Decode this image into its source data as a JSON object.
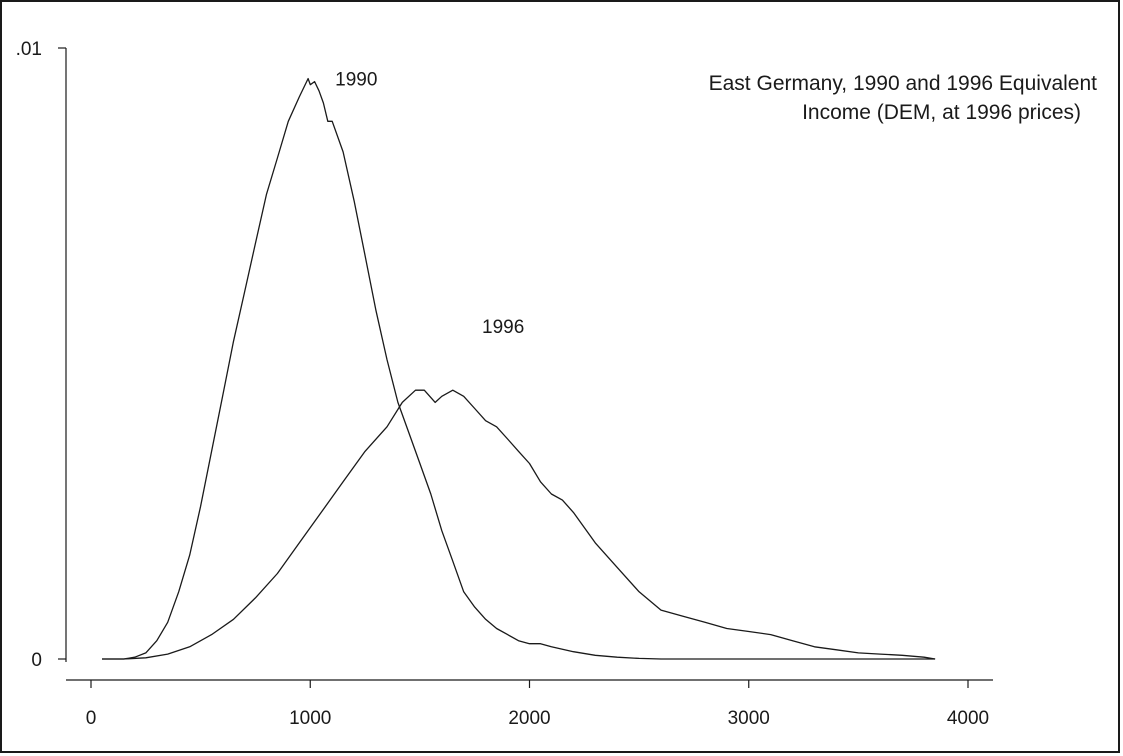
{
  "chart_data": {
    "type": "line",
    "title_lines": [
      "East Germany, 1990 and 1996 Equivalent",
      "Income (DEM, at 1996 prices)"
    ],
    "xlabel": "",
    "ylabel": "",
    "xlim": [
      -50,
      4150
    ],
    "ylim": [
      0,
      0.0103
    ],
    "x_ticks": [
      0,
      1000,
      2000,
      3000,
      4000
    ],
    "x_tick_labels": [
      "0",
      "1000",
      "2000",
      "3000",
      "4000"
    ],
    "y_ticks": [
      0,
      0.01
    ],
    "y_tick_labels": [
      "0",
      ".01"
    ],
    "grid": false,
    "legend": "none",
    "series": [
      {
        "name": "1990",
        "label_at": [
          1210,
          0.0095
        ],
        "points": [
          [
            50,
            0
          ],
          [
            150,
            0
          ],
          [
            200,
            3e-05
          ],
          [
            250,
            0.0001
          ],
          [
            300,
            0.0003
          ],
          [
            350,
            0.0006
          ],
          [
            400,
            0.0011
          ],
          [
            450,
            0.0017
          ],
          [
            500,
            0.0025
          ],
          [
            550,
            0.0034
          ],
          [
            600,
            0.0043
          ],
          [
            650,
            0.0052
          ],
          [
            700,
            0.006
          ],
          [
            750,
            0.0068
          ],
          [
            800,
            0.0076
          ],
          [
            850,
            0.0082
          ],
          [
            900,
            0.0088
          ],
          [
            950,
            0.0092
          ],
          [
            990,
            0.0095
          ],
          [
            1000,
            0.0094
          ],
          [
            1020,
            0.00945
          ],
          [
            1040,
            0.0093
          ],
          [
            1060,
            0.0091
          ],
          [
            1080,
            0.0088
          ],
          [
            1100,
            0.0088
          ],
          [
            1150,
            0.0083
          ],
          [
            1200,
            0.0075
          ],
          [
            1250,
            0.0066
          ],
          [
            1300,
            0.0057
          ],
          [
            1350,
            0.0049
          ],
          [
            1400,
            0.0042
          ],
          [
            1450,
            0.0037
          ],
          [
            1500,
            0.0032
          ],
          [
            1550,
            0.0027
          ],
          [
            1600,
            0.0021
          ],
          [
            1650,
            0.0016
          ],
          [
            1700,
            0.0011
          ],
          [
            1750,
            0.00085
          ],
          [
            1800,
            0.00065
          ],
          [
            1850,
            0.0005
          ],
          [
            1900,
            0.0004
          ],
          [
            1950,
            0.0003
          ],
          [
            2000,
            0.00025
          ],
          [
            2050,
            0.00025
          ],
          [
            2100,
            0.0002
          ],
          [
            2200,
            0.00012
          ],
          [
            2300,
            6e-05
          ],
          [
            2400,
            3e-05
          ],
          [
            2500,
            1e-05
          ],
          [
            2600,
            0
          ],
          [
            3000,
            0
          ],
          [
            3500,
            0
          ],
          [
            3850,
            0
          ]
        ]
      },
      {
        "name": "1996",
        "label_at": [
          1880,
          0.00545
        ],
        "points": [
          [
            50,
            0
          ],
          [
            150,
            0
          ],
          [
            250,
            2e-05
          ],
          [
            350,
            8e-05
          ],
          [
            450,
            0.0002
          ],
          [
            550,
            0.0004
          ],
          [
            650,
            0.00065
          ],
          [
            750,
            0.001
          ],
          [
            850,
            0.0014
          ],
          [
            950,
            0.0019
          ],
          [
            1050,
            0.0024
          ],
          [
            1150,
            0.0029
          ],
          [
            1250,
            0.0034
          ],
          [
            1350,
            0.0038
          ],
          [
            1420,
            0.0042
          ],
          [
            1480,
            0.0044
          ],
          [
            1520,
            0.0044
          ],
          [
            1570,
            0.0042
          ],
          [
            1600,
            0.0043
          ],
          [
            1650,
            0.0044
          ],
          [
            1700,
            0.0043
          ],
          [
            1750,
            0.0041
          ],
          [
            1800,
            0.0039
          ],
          [
            1850,
            0.0038
          ],
          [
            1900,
            0.0036
          ],
          [
            1950,
            0.0034
          ],
          [
            2000,
            0.0032
          ],
          [
            2050,
            0.0029
          ],
          [
            2100,
            0.0027
          ],
          [
            2150,
            0.0026
          ],
          [
            2200,
            0.0024
          ],
          [
            2300,
            0.0019
          ],
          [
            2400,
            0.0015
          ],
          [
            2500,
            0.0011
          ],
          [
            2600,
            0.0008
          ],
          [
            2700,
            0.0007
          ],
          [
            2800,
            0.0006
          ],
          [
            2900,
            0.0005
          ],
          [
            3000,
            0.00045
          ],
          [
            3100,
            0.0004
          ],
          [
            3200,
            0.0003
          ],
          [
            3300,
            0.0002
          ],
          [
            3400,
            0.00015
          ],
          [
            3500,
            0.0001
          ],
          [
            3600,
            8e-05
          ],
          [
            3700,
            6e-05
          ],
          [
            3800,
            3e-05
          ],
          [
            3850,
            0
          ]
        ]
      }
    ]
  }
}
